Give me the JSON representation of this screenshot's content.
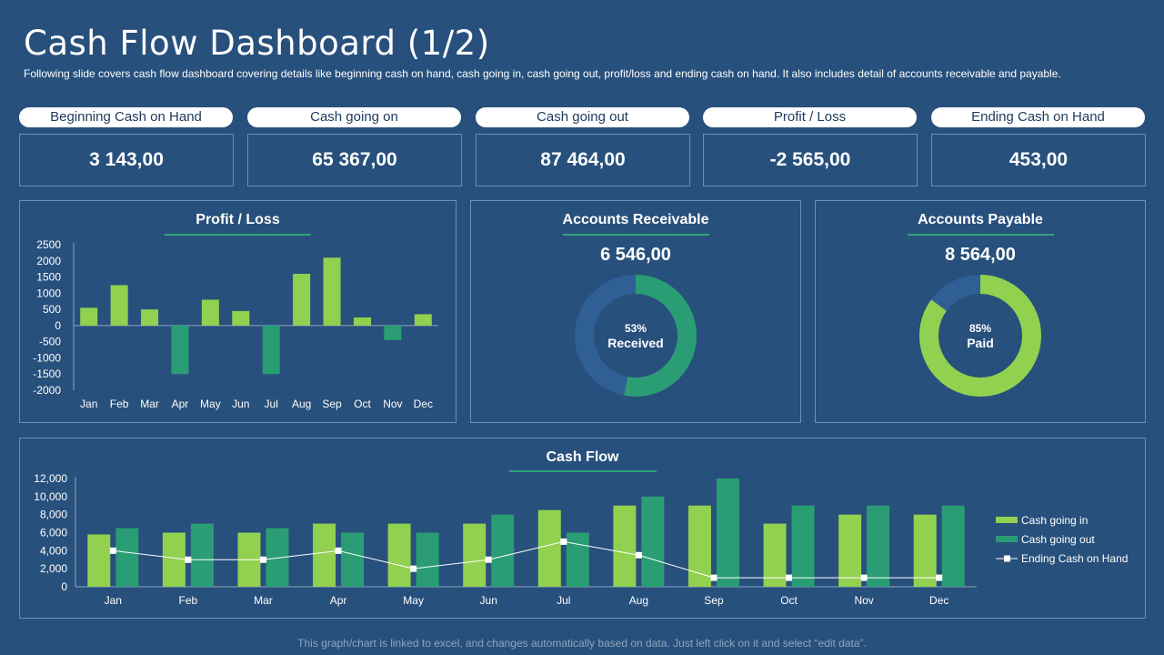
{
  "header": {
    "title": "Cash Flow Dashboard (1/2)",
    "description": "Following slide covers cash flow dashboard covering details like beginning cash on hand, cash going in, cash going out, profit/loss and ending cash on hand. It also includes detail of accounts receivable and payable."
  },
  "kpis": [
    {
      "label": "Beginning Cash on Hand",
      "value": "3 143,00"
    },
    {
      "label": "Cash going on",
      "value": "65 367,00"
    },
    {
      "label": "Cash going out",
      "value": "87 464,00"
    },
    {
      "label": "Profit / Loss",
      "value": "-2 565,00"
    },
    {
      "label": "Ending Cash on Hand",
      "value": "453,00"
    }
  ],
  "receivable": {
    "title": "Accounts Receivable",
    "value": "6 546,00",
    "percent_label": "53%",
    "status_label": "Received",
    "fraction": 0.53
  },
  "payable": {
    "title": "Accounts Payable",
    "value": "8 564,00",
    "percent_label": "85%",
    "status_label": "Paid",
    "fraction": 0.85
  },
  "colors": {
    "background": "#28507c",
    "light_green": "#92d050",
    "dark_green": "#2a9d74",
    "donut_remainder": "#2f5f95",
    "axis_line": "#8ea4bf"
  },
  "footer": "This graph/chart is linked to excel, and changes automatically based on data. Just left click on it and select “edit data”.",
  "chart_data": [
    {
      "type": "bar",
      "title": "Profit / Loss",
      "categories": [
        "Jan",
        "Feb",
        "Mar",
        "Apr",
        "May",
        "Jun",
        "Jul",
        "Aug",
        "Sep",
        "Oct",
        "Nov",
        "Dec"
      ],
      "values": [
        550,
        1250,
        500,
        -1500,
        800,
        450,
        -1500,
        1600,
        2100,
        250,
        -450,
        350
      ],
      "ylim": [
        -2000,
        2500
      ],
      "yticks": [
        "2500",
        "2000",
        "1500",
        "1000",
        "500",
        "0",
        "-500",
        "-1000",
        "-1500",
        "-2000"
      ],
      "grid": false,
      "legend": "none"
    },
    {
      "type": "bar",
      "title": "Cash Flow",
      "categories": [
        "Jan",
        "Feb",
        "Mar",
        "Apr",
        "May",
        "Jun",
        "Jul",
        "Aug",
        "Sep",
        "Oct",
        "Nov",
        "Dec"
      ],
      "series": [
        {
          "name": "Cash going in",
          "type": "bar",
          "values": [
            5800,
            6000,
            6000,
            7000,
            7000,
            7000,
            8500,
            9000,
            9000,
            7000,
            8000,
            8000
          ]
        },
        {
          "name": "Cash going out",
          "type": "bar",
          "values": [
            6500,
            7000,
            6500,
            6000,
            6000,
            8000,
            6000,
            10000,
            12000,
            9000,
            9000,
            9000
          ]
        },
        {
          "name": "Ending Cash on Hand",
          "type": "line",
          "values": [
            4000,
            3000,
            3000,
            4000,
            2000,
            3000,
            5000,
            3500,
            1000,
            1000,
            1000,
            1000
          ]
        }
      ],
      "ylim": [
        0,
        12000
      ],
      "yticks": [
        "12,000",
        "10,000",
        "8,000",
        "6,000",
        "4,000",
        "2,000",
        "0"
      ],
      "grid": false,
      "legend": "right"
    }
  ]
}
